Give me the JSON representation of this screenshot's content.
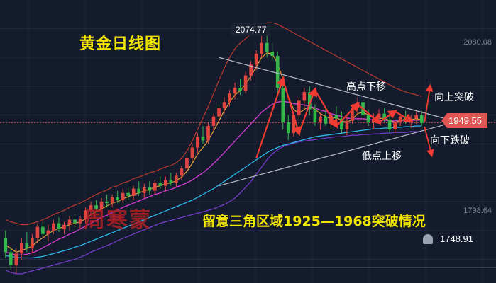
{
  "chart_data": {
    "type": "candlestick",
    "title": "黄金日线图",
    "watermark": "周寒蒙",
    "note": "留意三角区域1925—1968突破情况",
    "annotations": {
      "lower_highs": "高点下移",
      "higher_lows": "低点上移",
      "break_up": "向上突破",
      "break_down": "向下跌破"
    },
    "price_labels": {
      "high": "2074.77",
      "current": "1949.55",
      "alert": "1748.91"
    },
    "y_ticks": [
      "2080.08",
      "1798.64"
    ],
    "ylim": [
      1735,
      2100
    ],
    "ohlc": [
      [
        1790,
        1800,
        1762,
        1770
      ],
      [
        1770,
        1778,
        1745,
        1752
      ],
      [
        1752,
        1775,
        1740,
        1768
      ],
      [
        1768,
        1790,
        1760,
        1782
      ],
      [
        1782,
        1798,
        1770,
        1775
      ],
      [
        1775,
        1795,
        1768,
        1790
      ],
      [
        1790,
        1810,
        1782,
        1805
      ],
      [
        1805,
        1812,
        1790,
        1795
      ],
      [
        1795,
        1808,
        1785,
        1800
      ],
      [
        1800,
        1815,
        1795,
        1810
      ],
      [
        1810,
        1818,
        1798,
        1802
      ],
      [
        1802,
        1812,
        1795,
        1808
      ],
      [
        1808,
        1820,
        1800,
        1815
      ],
      [
        1815,
        1822,
        1805,
        1810
      ],
      [
        1810,
        1820,
        1802,
        1816
      ],
      [
        1816,
        1832,
        1810,
        1828
      ],
      [
        1828,
        1840,
        1820,
        1835
      ],
      [
        1835,
        1842,
        1825,
        1830
      ],
      [
        1830,
        1845,
        1825,
        1840
      ],
      [
        1840,
        1850,
        1832,
        1838
      ],
      [
        1838,
        1850,
        1832,
        1846
      ],
      [
        1846,
        1855,
        1838,
        1842
      ],
      [
        1842,
        1858,
        1838,
        1852
      ],
      [
        1852,
        1860,
        1842,
        1848
      ],
      [
        1848,
        1862,
        1842,
        1858
      ],
      [
        1858,
        1868,
        1848,
        1852
      ],
      [
        1852,
        1865,
        1845,
        1860
      ],
      [
        1860,
        1868,
        1850,
        1855
      ],
      [
        1855,
        1870,
        1850,
        1866
      ],
      [
        1866,
        1875,
        1858,
        1862
      ],
      [
        1862,
        1875,
        1855,
        1870
      ],
      [
        1870,
        1880,
        1862,
        1866
      ],
      [
        1866,
        1880,
        1860,
        1876
      ],
      [
        1876,
        1890,
        1870,
        1886
      ],
      [
        1886,
        1905,
        1880,
        1900
      ],
      [
        1900,
        1920,
        1895,
        1915
      ],
      [
        1915,
        1935,
        1908,
        1930
      ],
      [
        1930,
        1945,
        1920,
        1925
      ],
      [
        1925,
        1950,
        1920,
        1945
      ],
      [
        1945,
        1962,
        1938,
        1958
      ],
      [
        1958,
        1975,
        1950,
        1970
      ],
      [
        1970,
        1985,
        1962,
        1978
      ],
      [
        1978,
        1995,
        1972,
        1990
      ],
      [
        1990,
        2005,
        1982,
        1998
      ],
      [
        1998,
        2010,
        1988,
        1994
      ],
      [
        1994,
        2020,
        1990,
        2015
      ],
      [
        2015,
        2035,
        2008,
        2030
      ],
      [
        2030,
        2050,
        2022,
        2045
      ],
      [
        2045,
        2075,
        2040,
        2060
      ],
      [
        2060,
        2070,
        2040,
        2048
      ],
      [
        2048,
        2060,
        2035,
        2042
      ],
      [
        2042,
        2048,
        1990,
        1998
      ],
      [
        1998,
        2012,
        1940,
        1950
      ],
      [
        1950,
        1960,
        1925,
        1935
      ],
      [
        1935,
        1965,
        1930,
        1960
      ],
      [
        1960,
        1985,
        1955,
        1980
      ],
      [
        1980,
        1998,
        1970,
        1992
      ],
      [
        1992,
        2000,
        1960,
        1968
      ],
      [
        1968,
        1975,
        1945,
        1950
      ],
      [
        1950,
        1962,
        1940,
        1958
      ],
      [
        1958,
        1970,
        1945,
        1948
      ],
      [
        1948,
        1965,
        1940,
        1960
      ],
      [
        1960,
        1972,
        1950,
        1955
      ],
      [
        1955,
        1965,
        1935,
        1940
      ],
      [
        1940,
        1958,
        1932,
        1952
      ],
      [
        1952,
        1975,
        1948,
        1970
      ],
      [
        1970,
        1985,
        1960,
        1978
      ],
      [
        1978,
        1985,
        1955,
        1960
      ],
      [
        1960,
        1968,
        1945,
        1950
      ],
      [
        1950,
        1962,
        1940,
        1955
      ],
      [
        1955,
        1968,
        1948,
        1962
      ],
      [
        1962,
        1970,
        1950,
        1954
      ],
      [
        1954,
        1962,
        1935,
        1940
      ],
      [
        1940,
        1955,
        1935,
        1950
      ],
      [
        1950,
        1962,
        1945,
        1958
      ],
      [
        1958,
        1966,
        1948,
        1952
      ],
      [
        1952,
        1960,
        1942,
        1955
      ],
      [
        1955,
        1965,
        1948,
        1960
      ],
      [
        1960,
        1966,
        1945,
        1949
      ]
    ],
    "ma_short": [
      1780,
      1775,
      1770,
      1772,
      1775,
      1778,
      1785,
      1790,
      1795,
      1800,
      1803,
      1805,
      1808,
      1810,
      1812,
      1816,
      1822,
      1826,
      1830,
      1834,
      1838,
      1840,
      1844,
      1847,
      1850,
      1852,
      1855,
      1857,
      1860,
      1862,
      1865,
      1866,
      1869,
      1874,
      1882,
      1893,
      1906,
      1915,
      1925,
      1938,
      1952,
      1966,
      1978,
      1988,
      1994,
      2003,
      2014,
      2027,
      2040,
      2046,
      2045,
      2032,
      2010,
      1985,
      1968,
      1962,
      1968,
      1972,
      1968,
      1962,
      1958,
      1955,
      1957,
      1952,
      1950,
      1954,
      1962,
      1964,
      1960,
      1956,
      1955,
      1956,
      1952,
      1950,
      1952,
      1955,
      1954,
      1955,
      1954
    ],
    "ma_mid": [
      1770,
      1768,
      1766,
      1766,
      1767,
      1769,
      1772,
      1776,
      1780,
      1784,
      1788,
      1791,
      1795,
      1798,
      1802,
      1806,
      1810,
      1814,
      1818,
      1821,
      1825,
      1828,
      1832,
      1835,
      1838,
      1841,
      1844,
      1847,
      1850,
      1852,
      1855,
      1857,
      1860,
      1863,
      1866,
      1870,
      1875,
      1880,
      1886,
      1893,
      1900,
      1908,
      1916,
      1924,
      1932,
      1940,
      1948,
      1956,
      1964,
      1970,
      1975,
      1978,
      1979,
      1978,
      1976,
      1975,
      1974,
      1972,
      1970,
      1967,
      1965,
      1962,
      1960,
      1958,
      1956,
      1955,
      1955,
      1955,
      1954,
      1953,
      1953,
      1953,
      1952,
      1952,
      1952,
      1953,
      1953,
      1953,
      1953
    ],
    "ma_long": [
      1765,
      1764,
      1763,
      1762,
      1762,
      1762,
      1763,
      1764,
      1766,
      1768,
      1770,
      1772,
      1774,
      1777,
      1779,
      1782,
      1785,
      1788,
      1791,
      1794,
      1797,
      1800,
      1803,
      1806,
      1809,
      1812,
      1815,
      1818,
      1821,
      1824,
      1827,
      1830,
      1833,
      1836,
      1839,
      1842,
      1846,
      1850,
      1854,
      1858,
      1863,
      1868,
      1873,
      1878,
      1883,
      1888,
      1893,
      1898,
      1903,
      1908,
      1912,
      1915,
      1918,
      1920,
      1922,
      1924,
      1926,
      1928,
      1930,
      1931,
      1932,
      1933,
      1934,
      1935,
      1936,
      1937,
      1938,
      1939,
      1940,
      1941,
      1941,
      1942,
      1942,
      1943,
      1943,
      1944,
      1944,
      1945,
      1945
    ],
    "boll_upper": [
      1815,
      1812,
      1810,
      1808,
      1808,
      1810,
      1812,
      1815,
      1818,
      1822,
      1825,
      1828,
      1832,
      1835,
      1838,
      1842,
      1846,
      1850,
      1853,
      1856,
      1860,
      1862,
      1866,
      1868,
      1872,
      1874,
      1877,
      1880,
      1882,
      1885,
      1888,
      1890,
      1894,
      1900,
      1910,
      1924,
      1940,
      1956,
      1972,
      1990,
      2008,
      2025,
      2040,
      2052,
      2060,
      2066,
      2072,
      2080,
      2085,
      2088,
      2088,
      2086,
      2082,
      2078,
      2074,
      2070,
      2066,
      2062,
      2058,
      2054,
      2050,
      2046,
      2042,
      2038,
      2034,
      2030,
      2026,
      2022,
      2018,
      2014,
      2010,
      2006,
      2002,
      1998,
      1995,
      1992,
      1990,
      1988,
      1986
    ],
    "boll_lower": [
      1745,
      1742,
      1740,
      1740,
      1742,
      1744,
      1746,
      1748,
      1750,
      1752,
      1754,
      1756,
      1758,
      1760,
      1763,
      1766,
      1770,
      1773,
      1776,
      1779,
      1782,
      1786,
      1789,
      1792,
      1795,
      1798,
      1801,
      1804,
      1807,
      1810,
      1812,
      1814,
      1816,
      1818,
      1820,
      1822,
      1824,
      1826,
      1828,
      1830,
      1833,
      1836,
      1840,
      1845,
      1852,
      1860,
      1868,
      1878,
      1888,
      1898,
      1906,
      1912,
      1916,
      1919,
      1921,
      1923,
      1924,
      1925,
      1926,
      1927,
      1928,
      1929,
      1930,
      1930,
      1931,
      1932,
      1932,
      1933,
      1933,
      1934,
      1934,
      1935,
      1935,
      1936,
      1936,
      1936,
      1937,
      1937,
      1937
    ]
  }
}
